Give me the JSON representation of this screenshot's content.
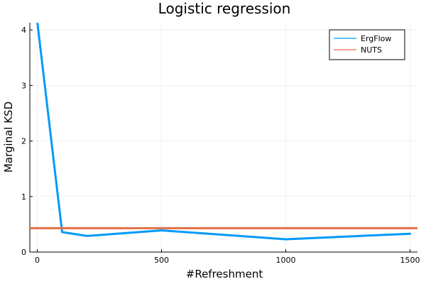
{
  "chart_data": {
    "type": "line",
    "title": "Logistic regression",
    "xlabel": "#Refreshment",
    "ylabel": "Marginal KSD",
    "xlim": [
      -30,
      1530
    ],
    "ylim": [
      0,
      4.13
    ],
    "xticks": [
      0,
      500,
      1000,
      1500
    ],
    "yticks": [
      0,
      1,
      2,
      3,
      4
    ],
    "grid": true,
    "legend_position": "top-right",
    "series": [
      {
        "name": "ErgFlow",
        "color": "#009AFA",
        "x": [
          0,
          100,
          200,
          500,
          1000,
          1500
        ],
        "y": [
          4.15,
          0.36,
          0.29,
          0.39,
          0.23,
          0.33
        ]
      },
      {
        "name": "NUTS",
        "color": "#E26F46",
        "x": [
          -30,
          1530
        ],
        "y": [
          0.43,
          0.43
        ]
      }
    ]
  }
}
